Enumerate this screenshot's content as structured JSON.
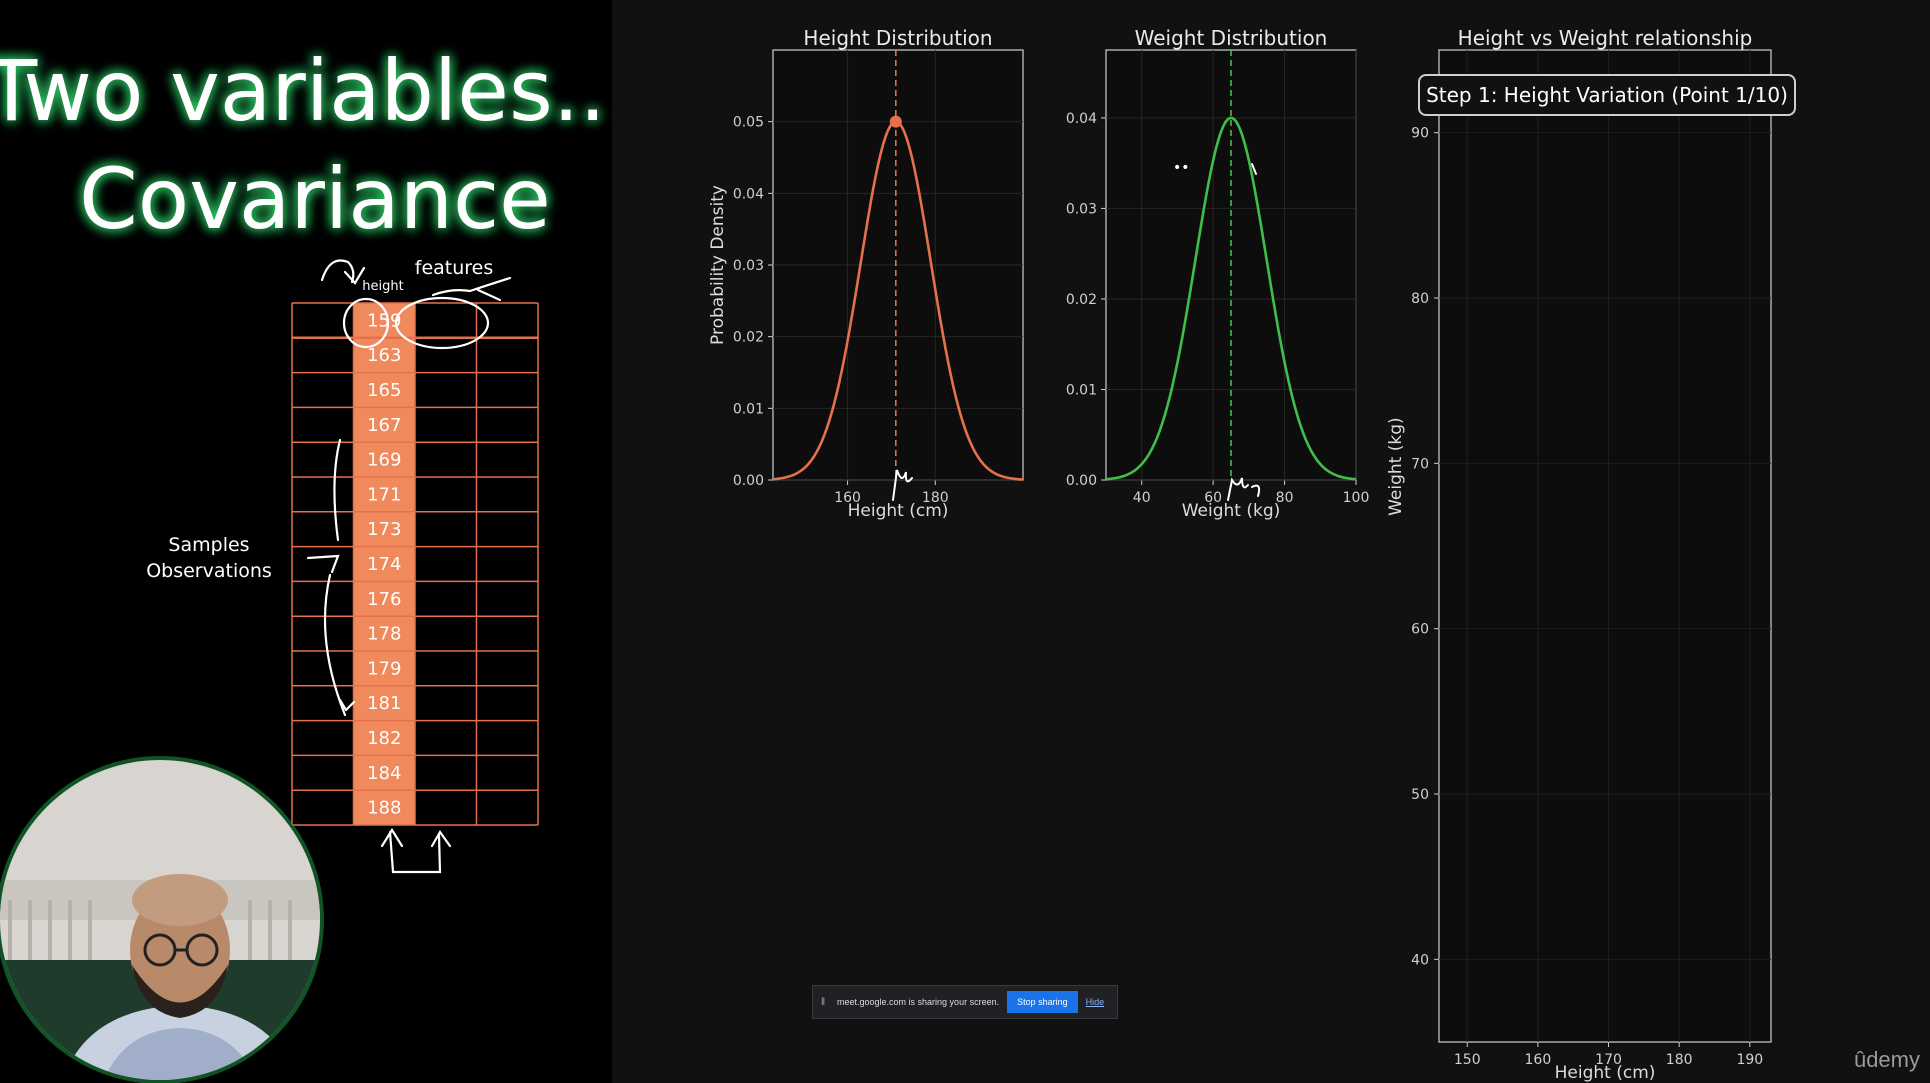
{
  "slide": {
    "title_line1": "Two variables..",
    "title_line2": "Covariance",
    "annotations": {
      "features": "features",
      "height": "height",
      "samples": "Samples",
      "observations": "Observations"
    },
    "height_values": [
      "159",
      "163",
      "165",
      "167",
      "169",
      "171",
      "173",
      "174",
      "176",
      "178",
      "179",
      "181",
      "182",
      "184",
      "188"
    ]
  },
  "chart_data": [
    {
      "type": "line",
      "title": "Height Distribution",
      "xlabel": "Height (cm)",
      "ylabel": "Probability Density",
      "xlim": [
        143,
        200
      ],
      "ylim": [
        0,
        0.06
      ],
      "xticks": [
        160,
        180
      ],
      "yticks": [
        0.0,
        0.01,
        0.02,
        0.03,
        0.04,
        0.05
      ],
      "mean": 171,
      "std": 8,
      "peak": 0.05,
      "color": "#e4714c"
    },
    {
      "type": "line",
      "title": "Weight Distribution",
      "xlabel": "Weight (kg)",
      "ylabel": "",
      "xlim": [
        30,
        100
      ],
      "ylim": [
        0,
        0.0475
      ],
      "xticks": [
        40,
        60,
        80,
        100
      ],
      "yticks": [
        0.0,
        0.01,
        0.02,
        0.03,
        0.04
      ],
      "mean": 65,
      "std": 10,
      "peak": 0.04,
      "color": "#3fbf4a"
    },
    {
      "type": "scatter",
      "title": "Height vs Weight relationship",
      "xlabel": "Height (cm)",
      "ylabel": "Weight (kg)",
      "xlim": [
        146,
        193
      ],
      "ylim": [
        35,
        95
      ],
      "xticks": [
        150,
        160,
        170,
        180,
        190
      ],
      "yticks": [
        40,
        50,
        60,
        70,
        80,
        90
      ],
      "points": []
    }
  ],
  "step_label": "Step 1: Height Variation (Point 1/10)",
  "screen_share": {
    "message": "meet.google.com is sharing your screen.",
    "stop_label": "Stop sharing",
    "hide_label": "Hide"
  },
  "brand": "ûdemy",
  "colors": {
    "orange": "#e4714c",
    "green": "#3fbf4a",
    "panel": "#111111",
    "glow": "#2fd66a"
  }
}
